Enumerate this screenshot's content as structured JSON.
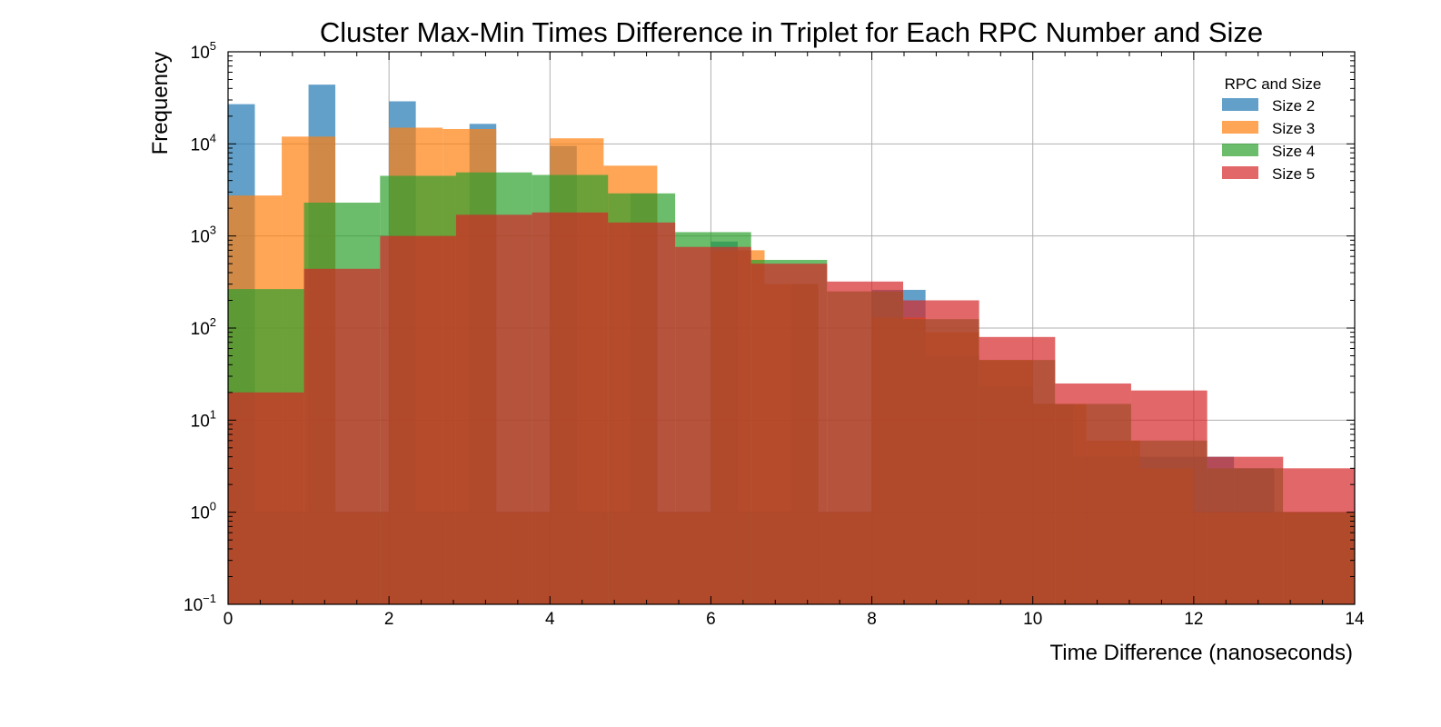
{
  "chart_data": {
    "type": "histogram",
    "title": "Cluster Max-Min Times Difference in Triplet for Each RPC Number and Size",
    "xlabel": "Time Difference (nanoseconds)",
    "ylabel": "Frequency",
    "xlim": [
      0,
      14
    ],
    "ylim": [
      0.1,
      100000
    ],
    "yscale": "log",
    "grid": true,
    "legend": {
      "title": "RPC and Size",
      "position": "top-right"
    },
    "x_ticks": [
      0,
      2,
      4,
      6,
      8,
      10,
      12,
      14
    ],
    "y_ticks": [
      {
        "value": 0.1,
        "base": "10",
        "exp": "−1"
      },
      {
        "value": 1,
        "base": "10",
        "exp": "0"
      },
      {
        "value": 10,
        "base": "10",
        "exp": "1"
      },
      {
        "value": 100,
        "base": "10",
        "exp": "2"
      },
      {
        "value": 1000,
        "base": "10",
        "exp": "3"
      },
      {
        "value": 10000,
        "base": "10",
        "exp": "4"
      },
      {
        "value": 100000,
        "base": "10",
        "exp": "5"
      }
    ],
    "series": [
      {
        "name": "Size 2",
        "color": "#1f77b4",
        "bins": [
          {
            "x0": 0.0,
            "x1": 0.333,
            "count": 27000
          },
          {
            "x0": 0.333,
            "x1": 1.0,
            "count": 1
          },
          {
            "x0": 1.0,
            "x1": 1.333,
            "count": 44000
          },
          {
            "x0": 1.333,
            "x1": 2.0,
            "count": 1
          },
          {
            "x0": 2.0,
            "x1": 2.333,
            "count": 29000
          },
          {
            "x0": 2.333,
            "x1": 3.0,
            "count": 1
          },
          {
            "x0": 3.0,
            "x1": 3.333,
            "count": 16500
          },
          {
            "x0": 3.333,
            "x1": 4.0,
            "count": 1
          },
          {
            "x0": 4.0,
            "x1": 4.333,
            "count": 9500
          },
          {
            "x0": 4.333,
            "x1": 5.0,
            "count": 1
          },
          {
            "x0": 5.0,
            "x1": 5.333,
            "count": 2900
          },
          {
            "x0": 5.333,
            "x1": 6.0,
            "count": 1
          },
          {
            "x0": 6.0,
            "x1": 6.333,
            "count": 870
          },
          {
            "x0": 6.333,
            "x1": 7.0,
            "count": 1
          },
          {
            "x0": 7.0,
            "x1": 7.333,
            "count": 300
          },
          {
            "x0": 7.333,
            "x1": 8.0,
            "count": 1
          },
          {
            "x0": 8.0,
            "x1": 8.667,
            "count": 260
          },
          {
            "x0": 8.667,
            "x1": 9.333,
            "count": 50
          },
          {
            "x0": 9.333,
            "x1": 10.0,
            "count": 23
          },
          {
            "x0": 10.0,
            "x1": 10.5,
            "count": 15
          },
          {
            "x0": 10.5,
            "x1": 11.333,
            "count": 4
          },
          {
            "x0": 11.333,
            "x1": 12.0,
            "count": 4
          },
          {
            "x0": 12.0,
            "x1": 12.5,
            "count": 4
          },
          {
            "x0": 12.5,
            "x1": 13.0,
            "count": 3
          },
          {
            "x0": 13.0,
            "x1": 14.0,
            "count": 1
          }
        ]
      },
      {
        "name": "Size 3",
        "color": "#ff7f0e",
        "bins": [
          {
            "x0": 0.0,
            "x1": 0.667,
            "count": 2750
          },
          {
            "x0": 0.667,
            "x1": 1.333,
            "count": 12000
          },
          {
            "x0": 1.333,
            "x1": 2.0,
            "count": 1
          },
          {
            "x0": 2.0,
            "x1": 2.667,
            "count": 15000
          },
          {
            "x0": 2.667,
            "x1": 3.333,
            "count": 14500
          },
          {
            "x0": 3.333,
            "x1": 4.0,
            "count": 1
          },
          {
            "x0": 4.0,
            "x1": 4.667,
            "count": 11500
          },
          {
            "x0": 4.667,
            "x1": 5.333,
            "count": 5800
          },
          {
            "x0": 5.333,
            "x1": 6.0,
            "count": 1
          },
          {
            "x0": 6.0,
            "x1": 6.667,
            "count": 700
          },
          {
            "x0": 6.667,
            "x1": 7.333,
            "count": 300
          },
          {
            "x0": 7.333,
            "x1": 8.0,
            "count": 1
          },
          {
            "x0": 8.0,
            "x1": 8.667,
            "count": 130
          },
          {
            "x0": 8.667,
            "x1": 9.333,
            "count": 90
          },
          {
            "x0": 9.333,
            "x1": 10.0,
            "count": 45
          },
          {
            "x0": 10.0,
            "x1": 10.667,
            "count": 15
          },
          {
            "x0": 10.667,
            "x1": 11.333,
            "count": 6
          },
          {
            "x0": 11.333,
            "x1": 12.0,
            "count": 3
          },
          {
            "x0": 12.0,
            "x1": 14.0,
            "count": 1
          }
        ]
      },
      {
        "name": "Size 4",
        "color": "#2ca02c",
        "bins": [
          {
            "x0": 0.0,
            "x1": 0.944,
            "count": 265
          },
          {
            "x0": 0.944,
            "x1": 1.889,
            "count": 2300
          },
          {
            "x0": 1.889,
            "x1": 2.833,
            "count": 4500
          },
          {
            "x0": 2.833,
            "x1": 3.778,
            "count": 4900
          },
          {
            "x0": 3.778,
            "x1": 4.722,
            "count": 4600
          },
          {
            "x0": 4.722,
            "x1": 5.556,
            "count": 2900
          },
          {
            "x0": 5.556,
            "x1": 6.5,
            "count": 1100
          },
          {
            "x0": 6.5,
            "x1": 7.444,
            "count": 550
          },
          {
            "x0": 7.444,
            "x1": 8.389,
            "count": 250
          },
          {
            "x0": 8.389,
            "x1": 9.333,
            "count": 125
          },
          {
            "x0": 9.333,
            "x1": 10.278,
            "count": 45
          },
          {
            "x0": 10.278,
            "x1": 11.222,
            "count": 15
          },
          {
            "x0": 11.222,
            "x1": 12.167,
            "count": 6
          },
          {
            "x0": 12.167,
            "x1": 13.111,
            "count": 3
          },
          {
            "x0": 13.111,
            "x1": 14.0,
            "count": 1
          }
        ]
      },
      {
        "name": "Size 5",
        "color": "#d62728",
        "bins": [
          {
            "x0": 0.0,
            "x1": 0.944,
            "count": 20
          },
          {
            "x0": 0.944,
            "x1": 1.889,
            "count": 440
          },
          {
            "x0": 1.889,
            "x1": 2.833,
            "count": 1000
          },
          {
            "x0": 2.833,
            "x1": 3.778,
            "count": 1700
          },
          {
            "x0": 3.778,
            "x1": 4.722,
            "count": 1800
          },
          {
            "x0": 4.722,
            "x1": 5.556,
            "count": 1400
          },
          {
            "x0": 5.556,
            "x1": 6.5,
            "count": 760
          },
          {
            "x0": 6.5,
            "x1": 7.444,
            "count": 500
          },
          {
            "x0": 7.444,
            "x1": 8.389,
            "count": 320
          },
          {
            "x0": 8.389,
            "x1": 9.333,
            "count": 200
          },
          {
            "x0": 9.333,
            "x1": 10.278,
            "count": 80
          },
          {
            "x0": 10.278,
            "x1": 11.222,
            "count": 25
          },
          {
            "x0": 11.222,
            "x1": 12.167,
            "count": 21
          },
          {
            "x0": 12.167,
            "x1": 13.111,
            "count": 4
          },
          {
            "x0": 13.111,
            "x1": 14.0,
            "count": 3
          }
        ]
      }
    ]
  }
}
